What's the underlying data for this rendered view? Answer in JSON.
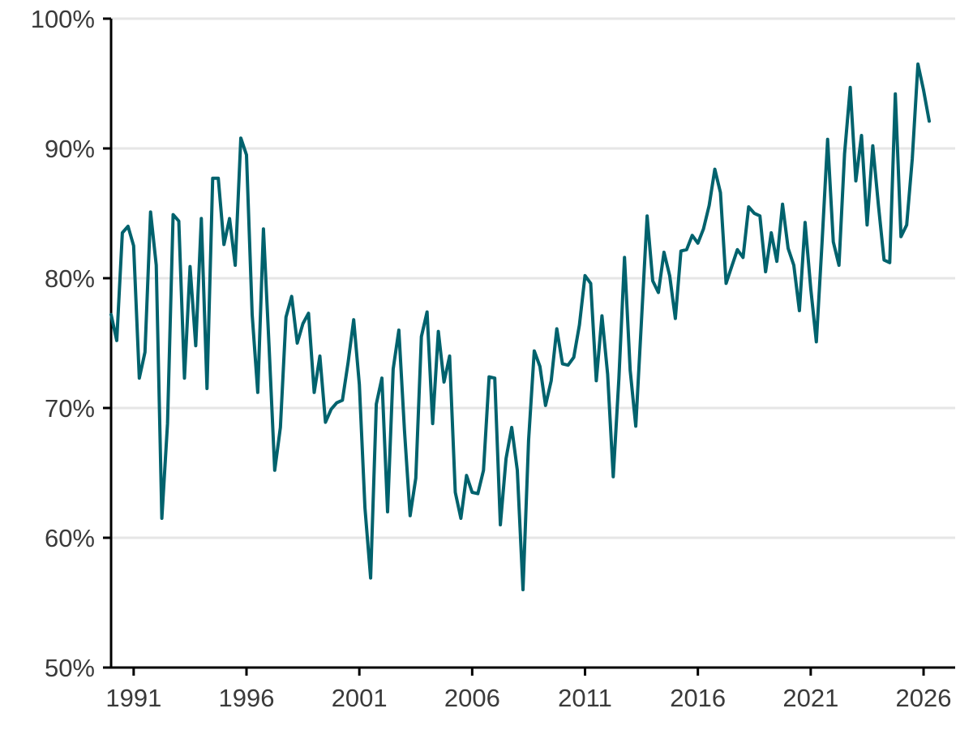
{
  "chart_data": {
    "type": "line",
    "title": "",
    "xlabel": "",
    "ylabel": "",
    "x_ticks": [
      "1991",
      "1996",
      "2001",
      "2006",
      "2011",
      "2016",
      "2021",
      "2026"
    ],
    "y_ticks": [
      "50%",
      "60%",
      "70%",
      "80%",
      "90%",
      "100%"
    ],
    "xlim": [
      1990.0,
      2027.4
    ],
    "ylim": [
      50,
      100
    ],
    "grid": "horizontal",
    "legend": "none",
    "colors": {
      "series": "#00626d",
      "grid": "#e6e6e6",
      "axis": "#000000",
      "text": "#3a3a3a"
    },
    "series": [
      {
        "x": [
          1990.0,
          1990.25,
          1990.5,
          1990.75,
          1991.0,
          1991.25,
          1991.5,
          1991.75,
          1992.0,
          1992.25,
          1992.5,
          1992.75,
          1993.0,
          1993.25,
          1993.5,
          1993.75,
          1994.0,
          1994.25,
          1994.5,
          1994.75,
          1995.0,
          1995.25,
          1995.5,
          1995.75,
          1996.0,
          1996.25,
          1996.5,
          1996.75,
          1997.0,
          1997.25,
          1997.5,
          1997.75,
          1998.0,
          1998.25,
          1998.5,
          1998.75,
          1999.0,
          1999.25,
          1999.5,
          1999.75,
          2000.0,
          2000.25,
          2000.5,
          2000.75,
          2001.0,
          2001.25,
          2001.5,
          2001.75,
          2002.0,
          2002.25,
          2002.5,
          2002.75,
          2003.0,
          2003.25,
          2003.5,
          2003.75,
          2004.0,
          2004.25,
          2004.5,
          2004.75,
          2005.0,
          2005.25,
          2005.5,
          2005.75,
          2006.0,
          2006.25,
          2006.5,
          2006.75,
          2007.0,
          2007.25,
          2007.5,
          2007.75,
          2008.0,
          2008.25,
          2008.5,
          2008.75,
          2009.0,
          2009.25,
          2009.5,
          2009.75,
          2010.0,
          2010.25,
          2010.5,
          2010.75,
          2011.0,
          2011.25,
          2011.5,
          2011.75,
          2012.0,
          2012.25,
          2012.5,
          2012.75,
          2013.0,
          2013.25,
          2013.5,
          2013.75,
          2014.0,
          2014.25,
          2014.5,
          2014.75,
          2015.0,
          2015.25,
          2015.5,
          2015.75,
          2016.0,
          2016.25,
          2016.5,
          2016.75,
          2017.0,
          2017.25,
          2017.5,
          2017.75,
          2018.0,
          2018.25,
          2018.5,
          2018.75,
          2019.0,
          2019.25,
          2019.5,
          2019.75,
          2020.0,
          2020.25,
          2020.5,
          2020.75,
          2021.0,
          2021.25,
          2021.5,
          2021.75,
          2022.0,
          2022.25,
          2022.5,
          2022.75,
          2023.0,
          2023.25,
          2023.5,
          2023.75,
          2024.0,
          2024.25,
          2024.5,
          2024.75,
          2025.0,
          2025.25,
          2025.5,
          2025.75,
          2026.0,
          2026.25
        ],
        "values": [
          77.2,
          75.2,
          83.5,
          84.0,
          82.5,
          72.3,
          74.3,
          85.1,
          81.0,
          61.5,
          68.8,
          84.9,
          84.4,
          72.3,
          80.9,
          74.8,
          84.6,
          71.5,
          87.7,
          87.7,
          82.6,
          84.6,
          81.0,
          90.8,
          89.5,
          77.2,
          71.2,
          83.8,
          74.8,
          65.2,
          68.5,
          77.0,
          78.6,
          75.0,
          76.5,
          77.3,
          71.2,
          74.0,
          68.9,
          69.9,
          70.4,
          70.6,
          73.5,
          76.8,
          71.8,
          62.3,
          56.9,
          70.3,
          72.3,
          62.0,
          73.0,
          76.0,
          68.3,
          61.7,
          64.6,
          75.5,
          77.4,
          68.8,
          75.9,
          72.0,
          74.0,
          63.5,
          61.5,
          64.8,
          63.5,
          63.4,
          65.2,
          72.4,
          72.3,
          61.0,
          66.1,
          68.5,
          65.2,
          56.0,
          67.5,
          74.4,
          73.2,
          70.2,
          72.1,
          76.1,
          73.4,
          73.3,
          73.9,
          76.4,
          80.2,
          79.6,
          72.1,
          77.1,
          72.6,
          64.7,
          72.3,
          81.6,
          72.9,
          68.6,
          76.7,
          84.8,
          79.8,
          78.9,
          82.0,
          80.2,
          76.9,
          82.1,
          82.2,
          83.3,
          82.7,
          83.8,
          85.6,
          88.4,
          86.6,
          79.6,
          80.9,
          82.2,
          81.6,
          85.5,
          85.0,
          84.8,
          80.5,
          83.5,
          81.3,
          85.7,
          82.3,
          81.0,
          77.5,
          84.3,
          79.2,
          75.1,
          82.7,
          90.7,
          82.8,
          81.0,
          89.6,
          94.7,
          87.5,
          91.0,
          84.1,
          90.2,
          85.6,
          81.4,
          81.2,
          94.2,
          83.2,
          84.1,
          89.2,
          96.5,
          94.5,
          92.1
        ]
      }
    ]
  }
}
